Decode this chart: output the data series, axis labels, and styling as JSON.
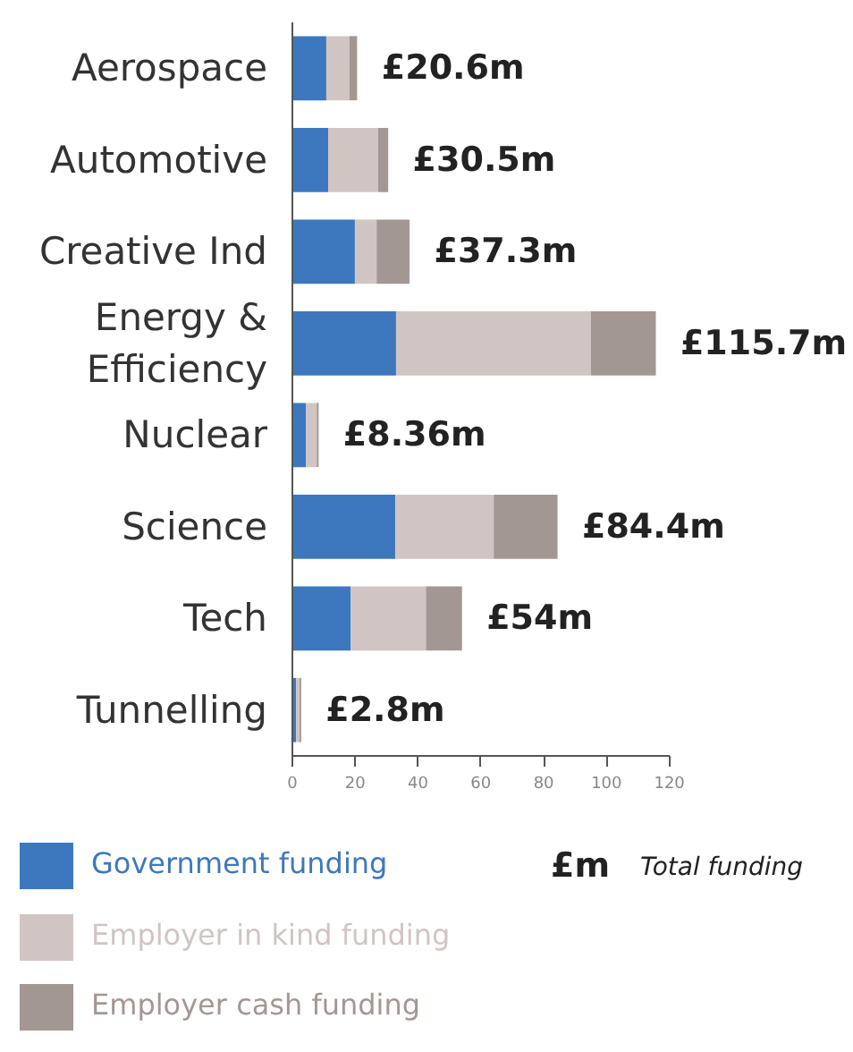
{
  "chart_data": {
    "type": "bar",
    "orientation": "horizontal",
    "stacked": true,
    "categories": [
      "Aerospace",
      "Automotive",
      "Creative Ind",
      "Energy & Efficiency",
      "Nuclear",
      "Science",
      "Tech",
      "Tunnelling"
    ],
    "series": [
      {
        "name": "Government funding",
        "color": "#3d78be",
        "values": [
          10.8,
          11.4,
          19.9,
          33,
          4.36,
          32.8,
          18.6,
          1.2
        ]
      },
      {
        "name": "Employer in kind funding",
        "color": "#d0c5c3",
        "values": [
          7.4,
          15.9,
          6.9,
          62,
          3.4,
          31.3,
          23.9,
          1.0
        ]
      },
      {
        "name": "Employer cash funding",
        "color": "#a39793",
        "values": [
          2.4,
          3.2,
          10.5,
          20.7,
          0.6,
          20.3,
          11.5,
          0.6
        ]
      }
    ],
    "totals": [
      "£20.6m",
      "£30.5m",
      "£37.3m",
      "£115.7m",
      "£8.36m",
      "£84.4m",
      "£54m",
      "£2.8m"
    ],
    "xlim": [
      0,
      120
    ],
    "xticks": [
      0,
      20,
      40,
      60,
      80,
      100,
      120
    ],
    "grid": false,
    "legend": "bottom",
    "annotations": [
      "£m",
      "Total funding"
    ]
  }
}
